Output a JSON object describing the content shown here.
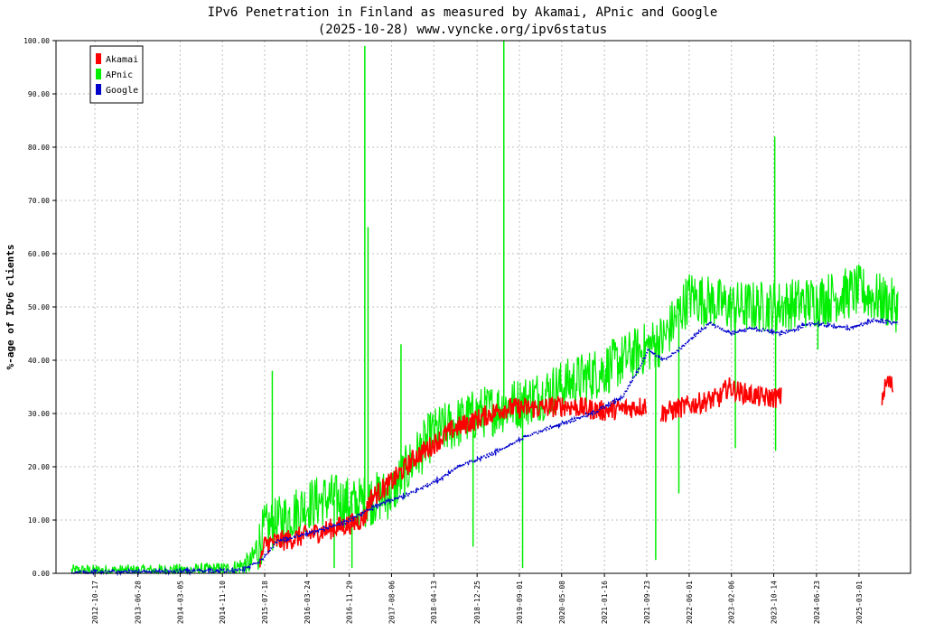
{
  "chart_data": {
    "type": "line",
    "title": "IPv6 Penetration in Finland as measured by Akamai, APnic and Google",
    "subtitle": "(2025-10-28) www.vyncke.org/ipv6status",
    "xlabel": "",
    "ylabel": "%-age of IPv6 clients",
    "ylim": [
      0,
      100
    ],
    "yticks": [
      "0.00",
      "10.00",
      "20.00",
      "30.00",
      "40.00",
      "50.00",
      "60.00",
      "70.00",
      "80.00",
      "90.00",
      "100.00"
    ],
    "xlim": [
      "2012-03-01",
      "2025-12-31"
    ],
    "xticks": [
      "2012-10-17",
      "2013-06-28",
      "2014-03-05",
      "2014-11-10",
      "2015-07-18",
      "2016-03-24",
      "2016-11-29",
      "2017-08-06",
      "2018-04-13",
      "2018-12-25",
      "2019-09-01",
      "2020-05-08",
      "2021-01-16",
      "2021-09-23",
      "2022-06-01",
      "2023-02-06",
      "2023-10-14",
      "2024-06-23",
      "2025-03-01"
    ],
    "grid": true,
    "legend_position": "top-left",
    "series": [
      {
        "name": "Akamai",
        "color": "#ff0000",
        "noise": 2.0,
        "points": [
          [
            "2015-06-20",
            2.0
          ],
          [
            "2015-07-20",
            5.5
          ],
          [
            "2016-01-01",
            6.5
          ],
          [
            "2016-07-01",
            8.0
          ],
          [
            "2017-01-01",
            9.5
          ],
          [
            "2017-03-01",
            10.5
          ],
          [
            "2017-04-01",
            14.0
          ],
          [
            "2017-08-01",
            17.0
          ],
          [
            "2018-01-01",
            22.0
          ],
          [
            "2018-04-01",
            24.0
          ],
          [
            "2018-08-01",
            27.0
          ],
          [
            "2019-01-01",
            29.0
          ],
          [
            "2019-06-01",
            31.0
          ],
          [
            "2020-01-01",
            31.0
          ],
          [
            "2020-06-01",
            31.5
          ],
          [
            "2021-01-01",
            30.5
          ],
          [
            "2021-06-01",
            31.0
          ],
          [
            "2021-09-20",
            31.5
          ],
          null,
          [
            "2021-12-15",
            30.0
          ],
          [
            "2022-04-01",
            31.0
          ],
          [
            "2022-08-01",
            32.0
          ],
          [
            "2022-12-01",
            33.0
          ],
          [
            "2023-01-15",
            35.0
          ],
          [
            "2023-04-01",
            34.0
          ],
          [
            "2023-08-01",
            33.0
          ],
          [
            "2023-11-30",
            33.0
          ],
          null,
          [
            "2025-07-15",
            33.0
          ],
          [
            "2025-08-15",
            36.0
          ],
          [
            "2025-09-20",
            35.0
          ]
        ]
      },
      {
        "name": "APnic",
        "color": "#00ee00",
        "noise": 5.0,
        "points": [
          [
            "2012-06-01",
            0.5
          ],
          [
            "2013-06-01",
            0.5
          ],
          [
            "2014-06-01",
            0.6
          ],
          [
            "2015-01-01",
            0.8
          ],
          [
            "2015-05-01",
            2.0
          ],
          [
            "2015-07-15",
            8.0
          ],
          [
            "2015-11-01",
            10.0
          ],
          [
            "2016-04-01",
            13.0
          ],
          [
            "2016-08-01",
            14.0
          ],
          [
            "2017-01-01",
            13.0
          ],
          [
            "2017-08-01",
            15.0
          ],
          [
            "2018-01-01",
            22.0
          ],
          [
            "2018-04-01",
            26.0
          ],
          [
            "2019-01-01",
            30.0
          ],
          [
            "2019-09-01",
            32.0
          ],
          [
            "2020-05-01",
            35.0
          ],
          [
            "2021-01-01",
            38.0
          ],
          [
            "2021-09-01",
            42.0
          ],
          [
            "2022-01-01",
            44.0
          ],
          [
            "2022-06-01",
            52.0
          ],
          [
            "2023-02-01",
            50.0
          ],
          [
            "2023-10-01",
            50.0
          ],
          [
            "2024-06-01",
            51.0
          ],
          [
            "2025-03-01",
            53.0
          ],
          [
            "2025-10-20",
            50.0
          ]
        ],
        "spikes": [
          [
            "2015-09-01",
            38.0
          ],
          [
            "2017-03-01",
            99.0
          ],
          [
            "2017-03-20",
            65.0
          ],
          [
            "2017-10-01",
            43.0
          ],
          [
            "2016-09-01",
            1.0
          ],
          [
            "2016-12-15",
            1.0
          ],
          [
            "2018-12-01",
            5.0
          ],
          [
            "2019-06-01",
            100.0
          ],
          [
            "2019-09-20",
            1.0
          ],
          [
            "2021-11-15",
            2.5
          ],
          [
            "2022-04-01",
            15.0
          ],
          [
            "2023-03-01",
            23.5
          ],
          [
            "2023-10-20",
            82.0
          ],
          [
            "2023-10-25",
            23.0
          ],
          [
            "2024-07-01",
            42.0
          ]
        ]
      },
      {
        "name": "Google",
        "color": "#0000cc",
        "noise": 0.6,
        "points": [
          [
            "2012-06-01",
            0.2
          ],
          [
            "2013-06-01",
            0.3
          ],
          [
            "2014-06-01",
            0.4
          ],
          [
            "2015-03-01",
            0.6
          ],
          [
            "2015-07-01",
            2.5
          ],
          [
            "2015-10-01",
            6.0
          ],
          [
            "2016-04-01",
            7.5
          ],
          [
            "2016-11-01",
            9.5
          ],
          [
            "2017-06-01",
            13.0
          ],
          [
            "2017-12-01",
            15.0
          ],
          [
            "2018-06-01",
            18.0
          ],
          [
            "2018-09-01",
            20.0
          ],
          [
            "2018-12-01",
            21.0
          ],
          [
            "2019-05-01",
            23.0
          ],
          [
            "2019-11-01",
            26.0
          ],
          [
            "2020-05-01",
            28.0
          ],
          [
            "2020-11-01",
            30.0
          ],
          [
            "2021-05-01",
            33.0
          ],
          [
            "2021-08-01",
            38.0
          ],
          [
            "2021-10-01",
            42.0
          ],
          [
            "2022-01-01",
            40.0
          ],
          [
            "2022-04-01",
            42.0
          ],
          [
            "2022-10-01",
            47.0
          ],
          [
            "2023-02-01",
            45.0
          ],
          [
            "2023-06-01",
            46.0
          ],
          [
            "2023-12-01",
            45.0
          ],
          [
            "2024-06-01",
            47.0
          ],
          [
            "2025-01-01",
            46.0
          ],
          [
            "2025-06-01",
            47.5
          ],
          [
            "2025-10-20",
            47.0
          ]
        ]
      }
    ]
  }
}
